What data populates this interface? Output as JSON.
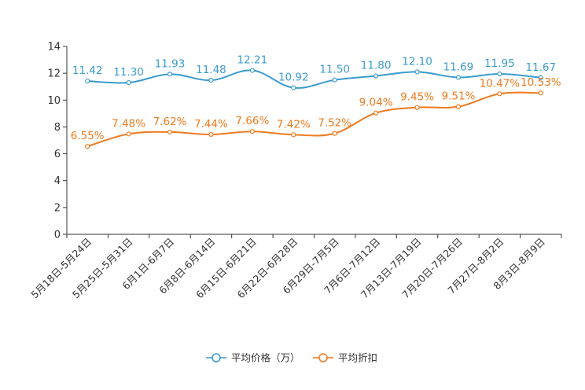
{
  "chart_data": {
    "type": "line",
    "title": "",
    "xlabel": "",
    "ylabel": "",
    "ylim": [
      0,
      14
    ],
    "yticks": [
      "0",
      "2",
      "4",
      "6",
      "8",
      "10",
      "12",
      "14"
    ],
    "grid": false,
    "legend_position": "bottom-center",
    "categories": [
      "5月18日-5月24日",
      "5月25日-5月31日",
      "6月1日-6月7日",
      "6月8日-6月14日",
      "6月15日-6月21日",
      "6月22日-6月28日",
      "6月29日-7月5日",
      "7月6日-7月12日",
      "7月13日-7月19日",
      "7月20日-7月26日",
      "7月27日-8月2日",
      "8月3日-8月9日"
    ],
    "series": [
      {
        "name": "平均价格（万）",
        "color": "#3a9bd0",
        "values": [
          11.42,
          11.3,
          11.93,
          11.48,
          12.21,
          10.92,
          11.5,
          11.8,
          12.1,
          11.69,
          11.95,
          11.67
        ],
        "labels": [
          "11.42",
          "11.30",
          "11.93",
          "11.48",
          "12.21",
          "10.92",
          "11.50",
          "11.80",
          "12.10",
          "11.69",
          "11.95",
          "11.67"
        ]
      },
      {
        "name": "平均折扣",
        "color": "#f07a1e",
        "values": [
          6.55,
          7.48,
          7.62,
          7.44,
          7.66,
          7.42,
          7.52,
          9.04,
          9.45,
          9.51,
          10.47,
          10.53
        ],
        "labels": [
          "6.55%",
          "7.48%",
          "7.62%",
          "7.44%",
          "7.66%",
          "7.42%",
          "7.52%",
          "9.04%",
          "9.45%",
          "9.51%",
          "10.47%",
          "10.53%"
        ]
      }
    ]
  }
}
